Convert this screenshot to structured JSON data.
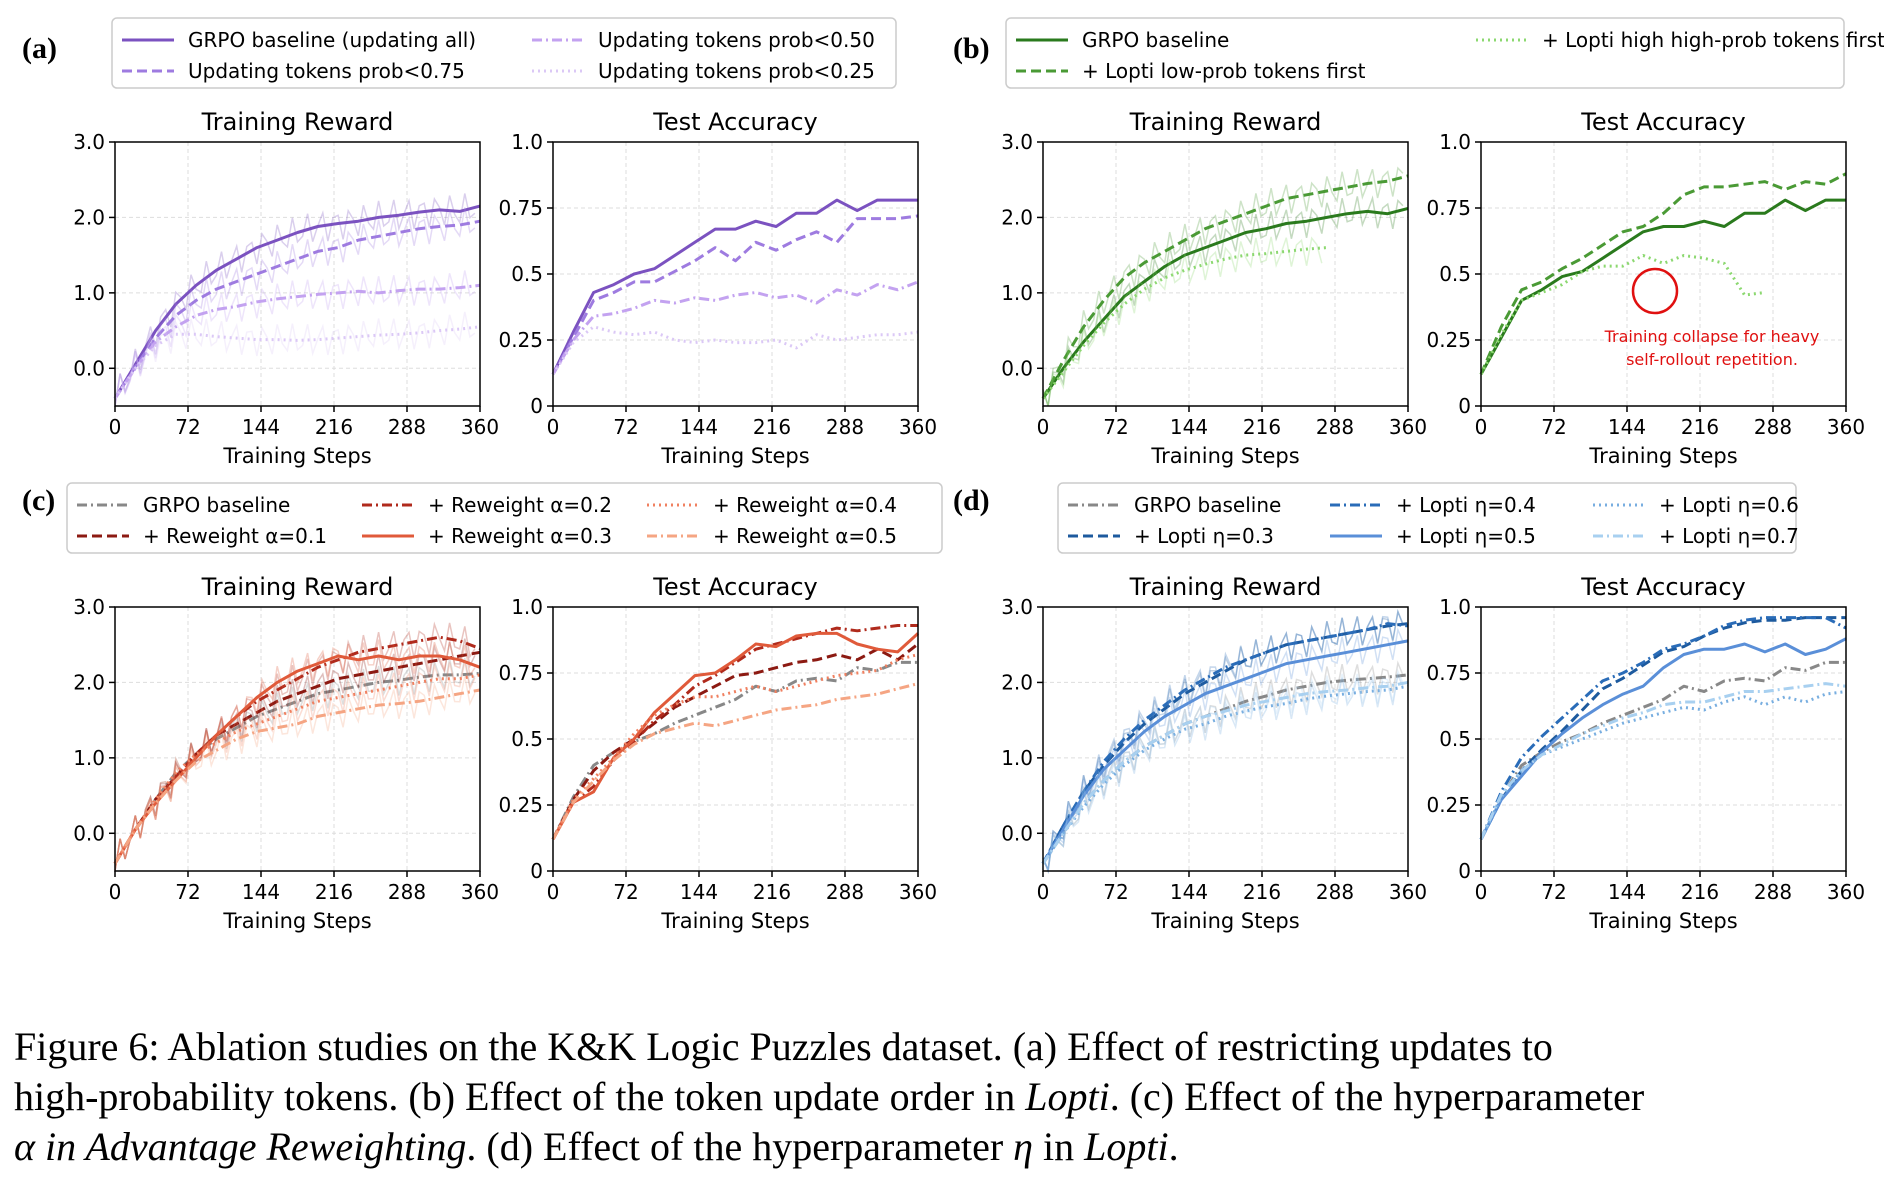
{
  "panel_labels": [
    "(a)",
    "(b)",
    "(c)",
    "(d)"
  ],
  "subplot_titles": {
    "reward": "Training Reward",
    "accuracy": "Test Accuracy"
  },
  "axis": {
    "xlabel": "Training Steps",
    "x_ticks": [
      "0",
      "72",
      "144",
      "216",
      "288",
      "360"
    ],
    "reward_ticks": [
      "0.0",
      "1.0",
      "2.0",
      "3.0"
    ],
    "acc_ticks": [
      "0",
      "0.25",
      "0.5",
      "0.75",
      "1.0"
    ]
  },
  "annotation": {
    "line1": "Training collapse for heavy",
    "line2": "self-rollout repetition."
  },
  "caption": {
    "line1_a": "Figure 6:   Ablation studies on the K&K Logic Puzzles dataset. (a) Effect of restricting updates to",
    "line2_a": "high-probability tokens. (b) Effect of the token update order in ",
    "line2_b": "Lopti",
    "line2_c": ". (c) Effect of the hyperparameter",
    "line3_a": "α in ",
    "line3_b": "Advantage Reweighting",
    "line3_c": ". (d) Effect of the hyperparameter ",
    "line3_d": "η",
    "line3_e": " in ",
    "line3_f": "Lopti",
    "line3_g": "."
  },
  "chart_data": [
    {
      "type": "line",
      "panel": "(a)",
      "x": [
        0,
        20,
        40,
        60,
        80,
        100,
        120,
        140,
        160,
        180,
        200,
        220,
        240,
        260,
        280,
        300,
        320,
        340,
        360
      ],
      "series": [
        {
          "name": "GRPO baseline (updating all)",
          "color": "#7b52c0",
          "dash": "solid",
          "reward": [
            -0.4,
            0.05,
            0.5,
            0.85,
            1.1,
            1.3,
            1.45,
            1.6,
            1.7,
            1.8,
            1.88,
            1.92,
            1.95,
            2.0,
            2.03,
            2.07,
            2.1,
            2.08,
            2.15
          ],
          "accuracy": [
            0.12,
            0.28,
            0.43,
            0.46,
            0.5,
            0.52,
            0.57,
            0.62,
            0.67,
            0.67,
            0.7,
            0.68,
            0.73,
            0.73,
            0.78,
            0.74,
            0.78,
            0.78,
            0.78
          ]
        },
        {
          "name": "Updating tokens prob<0.75",
          "color": "#9e7be0",
          "dash": "dashed",
          "reward": [
            -0.4,
            0.02,
            0.4,
            0.7,
            0.9,
            1.05,
            1.15,
            1.25,
            1.35,
            1.45,
            1.55,
            1.6,
            1.7,
            1.75,
            1.8,
            1.85,
            1.88,
            1.9,
            1.95
          ],
          "accuracy": [
            0.12,
            0.26,
            0.4,
            0.43,
            0.47,
            0.47,
            0.51,
            0.55,
            0.6,
            0.55,
            0.62,
            0.59,
            0.63,
            0.66,
            0.62,
            0.71,
            0.71,
            0.71,
            0.72
          ]
        },
        {
          "name": "Updating tokens prob<0.50",
          "color": "#c3a2f0",
          "dash": "dashdot",
          "reward": [
            -0.4,
            0.0,
            0.35,
            0.55,
            0.7,
            0.78,
            0.82,
            0.88,
            0.92,
            0.95,
            0.98,
            1.0,
            1.02,
            1.0,
            1.03,
            1.05,
            1.05,
            1.07,
            1.1
          ],
          "accuracy": [
            0.12,
            0.25,
            0.34,
            0.35,
            0.37,
            0.4,
            0.39,
            0.41,
            0.4,
            0.42,
            0.43,
            0.41,
            0.42,
            0.39,
            0.44,
            0.42,
            0.46,
            0.44,
            0.47
          ]
        },
        {
          "name": "Updating tokens prob<0.25",
          "color": "#dbc8f6",
          "dash": "dotted",
          "reward": [
            -0.4,
            0.0,
            0.3,
            0.45,
            0.45,
            0.42,
            0.4,
            0.38,
            0.38,
            0.37,
            0.38,
            0.4,
            0.42,
            0.44,
            0.45,
            0.47,
            0.5,
            0.52,
            0.55
          ],
          "accuracy": [
            0.12,
            0.24,
            0.3,
            0.28,
            0.27,
            0.28,
            0.25,
            0.24,
            0.25,
            0.24,
            0.24,
            0.25,
            0.22,
            0.27,
            0.25,
            0.26,
            0.27,
            0.27,
            0.28
          ]
        }
      ]
    },
    {
      "type": "line",
      "panel": "(b)",
      "x": [
        0,
        20,
        40,
        60,
        80,
        100,
        120,
        140,
        160,
        180,
        200,
        220,
        240,
        260,
        280,
        300,
        320,
        340,
        360
      ],
      "series": [
        {
          "name": "GRPO baseline",
          "color": "#2a7a1d",
          "dash": "solid",
          "reward": [
            -0.4,
            0.0,
            0.35,
            0.65,
            0.95,
            1.15,
            1.35,
            1.5,
            1.6,
            1.7,
            1.8,
            1.85,
            1.92,
            1.95,
            2.0,
            2.05,
            2.08,
            2.05,
            2.12
          ],
          "accuracy": [
            0.12,
            0.26,
            0.4,
            0.44,
            0.49,
            0.51,
            0.56,
            0.61,
            0.66,
            0.68,
            0.68,
            0.7,
            0.68,
            0.73,
            0.73,
            0.78,
            0.74,
            0.78,
            0.78
          ]
        },
        {
          "name": "+ Lopti low-prob tokens first",
          "color": "#4a9a35",
          "dash": "dashed",
          "reward": [
            -0.4,
            0.1,
            0.55,
            0.9,
            1.2,
            1.4,
            1.55,
            1.7,
            1.85,
            1.95,
            2.05,
            2.15,
            2.25,
            2.3,
            2.35,
            2.4,
            2.45,
            2.48,
            2.55
          ],
          "accuracy": [
            0.12,
            0.3,
            0.44,
            0.47,
            0.52,
            0.56,
            0.61,
            0.66,
            0.68,
            0.73,
            0.8,
            0.83,
            0.83,
            0.84,
            0.85,
            0.82,
            0.85,
            0.84,
            0.88
          ]
        },
        {
          "name": "+ Lopti high high-prob tokens first",
          "color": "#8cd870",
          "dash": "dotted",
          "reward": [
            -0.4,
            -0.05,
            0.3,
            0.6,
            0.85,
            1.05,
            1.2,
            1.3,
            1.38,
            1.45,
            1.5,
            1.52,
            1.55,
            1.58,
            1.6
          ],
          "accuracy": [
            0.12,
            0.27,
            0.4,
            0.43,
            0.46,
            0.51,
            0.53,
            0.53,
            0.57,
            0.54,
            0.57,
            0.56,
            0.54,
            0.42,
            0.43
          ],
          "x_override": [
            0,
            20,
            40,
            60,
            80,
            100,
            120,
            140,
            160,
            180,
            200,
            220,
            240,
            260,
            280
          ]
        }
      ]
    },
    {
      "type": "line",
      "panel": "(c)",
      "x": [
        0,
        20,
        40,
        60,
        80,
        100,
        120,
        140,
        160,
        180,
        200,
        220,
        240,
        260,
        280,
        300,
        320,
        340,
        360
      ],
      "series": [
        {
          "name": "GRPO baseline",
          "color": "#888888",
          "dash": "dashdot",
          "reward": [
            -0.4,
            0.05,
            0.45,
            0.8,
            1.05,
            1.25,
            1.4,
            1.55,
            1.65,
            1.75,
            1.85,
            1.9,
            1.95,
            2.0,
            2.03,
            2.07,
            2.1,
            2.1,
            2.12
          ],
          "accuracy": [
            0.12,
            0.28,
            0.4,
            0.45,
            0.49,
            0.52,
            0.56,
            0.59,
            0.62,
            0.65,
            0.7,
            0.68,
            0.72,
            0.73,
            0.72,
            0.77,
            0.76,
            0.79,
            0.79
          ]
        },
        {
          "name": "+ Reweight α=0.1",
          "color": "#8c1a12",
          "dash": "dashed",
          "reward": [
            -0.4,
            0.05,
            0.45,
            0.75,
            1.05,
            1.3,
            1.45,
            1.6,
            1.75,
            1.85,
            1.95,
            2.05,
            2.1,
            2.15,
            2.2,
            2.25,
            2.3,
            2.35,
            2.4
          ],
          "accuracy": [
            0.12,
            0.27,
            0.38,
            0.45,
            0.5,
            0.56,
            0.62,
            0.66,
            0.7,
            0.74,
            0.75,
            0.77,
            0.79,
            0.8,
            0.82,
            0.8,
            0.84,
            0.8,
            0.86
          ]
        },
        {
          "name": "+ Reweight α=0.2",
          "color": "#b02a1c",
          "dash": "dashdot",
          "reward": [
            -0.4,
            0.05,
            0.4,
            0.75,
            1.05,
            1.3,
            1.55,
            1.75,
            1.9,
            2.05,
            2.2,
            2.3,
            2.4,
            2.45,
            2.5,
            2.55,
            2.6,
            2.55,
            2.45
          ],
          "accuracy": [
            0.12,
            0.26,
            0.32,
            0.42,
            0.49,
            0.57,
            0.63,
            0.7,
            0.74,
            0.79,
            0.84,
            0.86,
            0.88,
            0.9,
            0.92,
            0.91,
            0.92,
            0.93,
            0.93
          ]
        },
        {
          "name": "+ Reweight α=0.3",
          "color": "#e05a3a",
          "dash": "solid",
          "reward": [
            -0.4,
            0.05,
            0.4,
            0.7,
            1.0,
            1.3,
            1.55,
            1.8,
            2.0,
            2.15,
            2.25,
            2.35,
            2.3,
            2.35,
            2.3,
            2.35,
            2.35,
            2.3,
            2.2
          ],
          "accuracy": [
            0.12,
            0.26,
            0.3,
            0.43,
            0.5,
            0.6,
            0.67,
            0.74,
            0.75,
            0.8,
            0.86,
            0.85,
            0.89,
            0.9,
            0.9,
            0.86,
            0.84,
            0.83,
            0.9
          ]
        },
        {
          "name": "+ Reweight α=0.4",
          "color": "#f08060",
          "dash": "dotted",
          "reward": [
            -0.4,
            0.05,
            0.45,
            0.8,
            1.05,
            1.2,
            1.35,
            1.45,
            1.55,
            1.65,
            1.75,
            1.8,
            1.85,
            1.9,
            1.95,
            2.0,
            2.05,
            2.05,
            2.1
          ],
          "accuracy": [
            0.12,
            0.27,
            0.35,
            0.43,
            0.52,
            0.59,
            0.63,
            0.66,
            0.66,
            0.68,
            0.7,
            0.68,
            0.7,
            0.72,
            0.74,
            0.75,
            0.76,
            0.8,
            0.82
          ]
        },
        {
          "name": "+ Reweight α=0.5",
          "color": "#f5a583",
          "dash": "dashdot",
          "reward": [
            -0.4,
            0.05,
            0.4,
            0.7,
            0.95,
            1.1,
            1.25,
            1.35,
            1.4,
            1.45,
            1.55,
            1.6,
            1.65,
            1.7,
            1.72,
            1.75,
            1.8,
            1.85,
            1.9
          ],
          "accuracy": [
            0.12,
            0.26,
            0.34,
            0.42,
            0.48,
            0.52,
            0.54,
            0.56,
            0.55,
            0.57,
            0.59,
            0.61,
            0.62,
            0.63,
            0.65,
            0.66,
            0.67,
            0.69,
            0.71
          ]
        }
      ]
    },
    {
      "type": "line",
      "panel": "(d)",
      "x": [
        0,
        20,
        40,
        60,
        80,
        100,
        120,
        140,
        160,
        180,
        200,
        220,
        240,
        260,
        280,
        300,
        320,
        340,
        360
      ],
      "series": [
        {
          "name": "GRPO baseline",
          "color": "#888888",
          "dash": "dashdot",
          "reward": [
            -0.4,
            0.0,
            0.4,
            0.7,
            0.95,
            1.15,
            1.3,
            1.45,
            1.55,
            1.65,
            1.75,
            1.82,
            1.9,
            1.95,
            2.0,
            2.03,
            2.05,
            2.07,
            2.1
          ],
          "accuracy": [
            0.12,
            0.28,
            0.4,
            0.45,
            0.49,
            0.52,
            0.56,
            0.59,
            0.62,
            0.65,
            0.7,
            0.68,
            0.72,
            0.73,
            0.72,
            0.77,
            0.76,
            0.79,
            0.79
          ]
        },
        {
          "name": "+ Lopti η=0.3",
          "color": "#1d5a9e",
          "dash": "dashed",
          "reward": [
            -0.4,
            0.1,
            0.55,
            0.9,
            1.2,
            1.45,
            1.65,
            1.85,
            2.0,
            2.15,
            2.3,
            2.4,
            2.5,
            2.55,
            2.6,
            2.65,
            2.7,
            2.75,
            2.78
          ],
          "accuracy": [
            0.12,
            0.27,
            0.38,
            0.46,
            0.53,
            0.61,
            0.69,
            0.73,
            0.78,
            0.83,
            0.85,
            0.89,
            0.92,
            0.94,
            0.95,
            0.95,
            0.96,
            0.96,
            0.96
          ]
        },
        {
          "name": "+ Lopti η=0.4",
          "color": "#2a6cb8",
          "dash": "dashdot",
          "reward": [
            -0.4,
            0.1,
            0.55,
            0.95,
            1.25,
            1.5,
            1.7,
            1.9,
            2.05,
            2.2,
            2.3,
            2.4,
            2.5,
            2.55,
            2.6,
            2.65,
            2.7,
            2.78,
            2.75
          ],
          "accuracy": [
            0.12,
            0.3,
            0.43,
            0.51,
            0.58,
            0.65,
            0.72,
            0.75,
            0.79,
            0.84,
            0.86,
            0.89,
            0.93,
            0.95,
            0.96,
            0.96,
            0.96,
            0.96,
            0.92
          ]
        },
        {
          "name": "+ Lopti η=0.5",
          "color": "#5a8fd8",
          "dash": "solid",
          "reward": [
            -0.4,
            0.05,
            0.5,
            0.85,
            1.1,
            1.35,
            1.55,
            1.7,
            1.85,
            1.95,
            2.05,
            2.15,
            2.25,
            2.3,
            2.35,
            2.4,
            2.45,
            2.5,
            2.55
          ],
          "accuracy": [
            0.12,
            0.27,
            0.36,
            0.45,
            0.52,
            0.58,
            0.63,
            0.67,
            0.7,
            0.77,
            0.82,
            0.84,
            0.84,
            0.86,
            0.83,
            0.86,
            0.82,
            0.84,
            0.88
          ]
        },
        {
          "name": "+ Lopti η=0.6",
          "color": "#78aee0",
          "dash": "dotted",
          "reward": [
            -0.4,
            0.0,
            0.35,
            0.65,
            0.9,
            1.1,
            1.25,
            1.38,
            1.45,
            1.55,
            1.62,
            1.68,
            1.72,
            1.78,
            1.82,
            1.85,
            1.88,
            1.9,
            1.95
          ],
          "accuracy": [
            0.12,
            0.28,
            0.38,
            0.44,
            0.47,
            0.5,
            0.53,
            0.56,
            0.58,
            0.6,
            0.62,
            0.61,
            0.64,
            0.66,
            0.63,
            0.66,
            0.64,
            0.67,
            0.68
          ]
        },
        {
          "name": "+ Lopti η=0.7",
          "color": "#a8d0f0",
          "dash": "dashdot",
          "reward": [
            -0.4,
            0.0,
            0.4,
            0.7,
            0.95,
            1.15,
            1.3,
            1.45,
            1.55,
            1.62,
            1.7,
            1.75,
            1.8,
            1.85,
            1.88,
            1.9,
            1.93,
            1.95,
            2.0
          ],
          "accuracy": [
            0.12,
            0.29,
            0.38,
            0.44,
            0.48,
            0.52,
            0.55,
            0.58,
            0.6,
            0.63,
            0.64,
            0.64,
            0.66,
            0.68,
            0.68,
            0.69,
            0.7,
            0.71,
            0.7
          ]
        }
      ]
    }
  ]
}
